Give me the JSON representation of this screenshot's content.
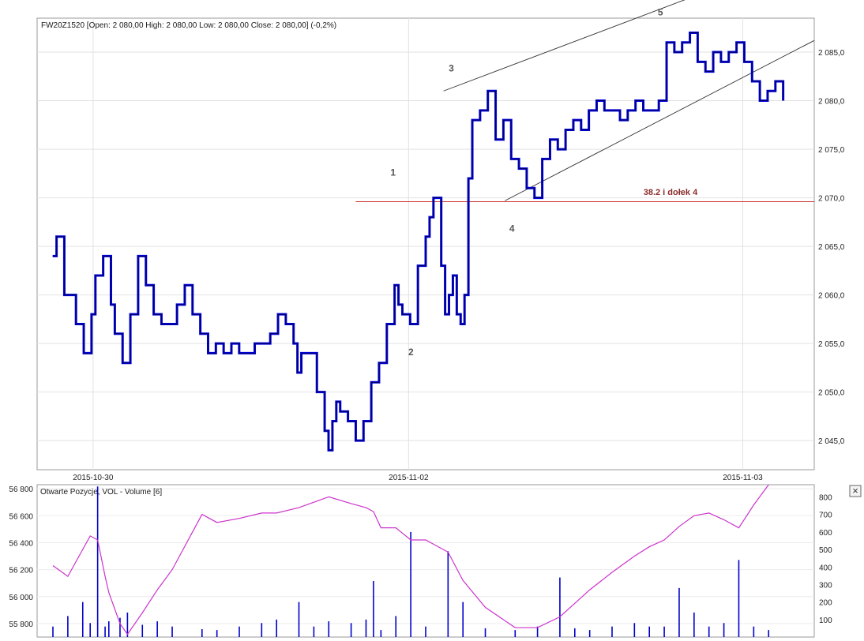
{
  "chart_data": [
    {
      "type": "line",
      "title": "FW20Z1520 [Open: 2 080,00  High: 2 080,00  Low: 2 080,00  Close: 2 080,00] (-0,2%)",
      "x_ticks": [
        "2015-10-30",
        "2015-11-02",
        "2015-11-03"
      ],
      "y_ticks": [
        "2 045,0",
        "2 050,0",
        "2 055,0",
        "2 060,0",
        "2 065,0",
        "2 070,0",
        "2 075,0",
        "2 080,0",
        "2 085,0"
      ],
      "ylim": [
        2042,
        2088.5
      ],
      "xlim": [
        0,
        1
      ],
      "series": [
        {
          "color": "#0000dd",
          "x": [
            0.02,
            0.025,
            0.035,
            0.05,
            0.06,
            0.07,
            0.075,
            0.085,
            0.095,
            0.1,
            0.11,
            0.12,
            0.13,
            0.14,
            0.15,
            0.16,
            0.18,
            0.19,
            0.2,
            0.21,
            0.22,
            0.23,
            0.24,
            0.25,
            0.26,
            0.28,
            0.3,
            0.31,
            0.32,
            0.33,
            0.335,
            0.34,
            0.35,
            0.36,
            0.37,
            0.375,
            0.38,
            0.385,
            0.39,
            0.4,
            0.41,
            0.42,
            0.43,
            0.44,
            0.45,
            0.46,
            0.465,
            0.47,
            0.48,
            0.49,
            0.5,
            0.505,
            0.51,
            0.52,
            0.525,
            0.53,
            0.535,
            0.54,
            0.545,
            0.55,
            0.555,
            0.56,
            0.57,
            0.58,
            0.59,
            0.6,
            0.61,
            0.62,
            0.63,
            0.64,
            0.65,
            0.66,
            0.67,
            0.68,
            0.69,
            0.7,
            0.71,
            0.72,
            0.73,
            0.74,
            0.75,
            0.76,
            0.77,
            0.78,
            0.79,
            0.8,
            0.81,
            0.82,
            0.83,
            0.84,
            0.85,
            0.86,
            0.87,
            0.88,
            0.89,
            0.9,
            0.91,
            0.92,
            0.93,
            0.94,
            0.95,
            0.96
          ],
          "y": [
            2064,
            2066,
            2060,
            2057,
            2054,
            2058,
            2062,
            2064,
            2059,
            2056,
            2053,
            2058,
            2064,
            2061,
            2058,
            2057,
            2059,
            2061,
            2058,
            2056,
            2054,
            2055,
            2054,
            2055,
            2054,
            2055,
            2056,
            2058,
            2057,
            2055,
            2052,
            2054,
            2054,
            2050,
            2046,
            2044,
            2047,
            2049,
            2048,
            2047,
            2045,
            2047,
            2051,
            2053,
            2057,
            2061,
            2059,
            2058,
            2057,
            2063,
            2066,
            2068,
            2070,
            2063,
            2058,
            2060,
            2062,
            2058,
            2057,
            2060,
            2072,
            2078,
            2079,
            2081,
            2076,
            2078,
            2074,
            2073,
            2071,
            2070,
            2074,
            2076,
            2075,
            2077,
            2078,
            2077,
            2079,
            2080,
            2079,
            2079,
            2078,
            2079,
            2080,
            2079,
            2079,
            2080,
            2086,
            2085,
            2086,
            2087,
            2084,
            2083,
            2085,
            2084,
            2085,
            2086,
            2084,
            2082,
            2080,
            2081,
            2082,
            2080
          ]
        }
      ],
      "annotations": [
        {
          "text": "1",
          "x": 0.458,
          "y": 2072.3
        },
        {
          "text": "2",
          "x": 0.481,
          "y": 2053.8
        },
        {
          "text": "3",
          "x": 0.533,
          "y": 2083.0
        },
        {
          "text": "4",
          "x": 0.611,
          "y": 2066.5
        },
        {
          "text": "5",
          "x": 0.802,
          "y": 2088.8
        },
        {
          "text": "38.2 i dołek 4",
          "x": 0.815,
          "y": 2070.3
        }
      ],
      "horizontal_lines": [
        {
          "y": 2069.6,
          "x_start": 0.41,
          "x_end": 1.0,
          "color": "#cc3333"
        }
      ],
      "trend_lines": [
        {
          "x1": 0.523,
          "y1": 2081.0,
          "x2": 0.87,
          "y2": 2091.5,
          "color": "#333333"
        },
        {
          "x1": 0.602,
          "y1": 2069.7,
          "x2": 1.0,
          "y2": 2086.2,
          "color": "#333333"
        }
      ],
      "grid": true,
      "legend": "none"
    },
    {
      "type": "bar",
      "title": "Otwarte Pozycje, VOL - Volume [6]",
      "left_ticks": [
        "55 800",
        "56 000",
        "56 200",
        "56 400",
        "56 600",
        "56 800"
      ],
      "right_ticks": [
        "100",
        "200",
        "300",
        "400",
        "500",
        "600",
        "700",
        "800"
      ],
      "left_lim": [
        55700,
        56830
      ],
      "right_lim": [
        0,
        870
      ],
      "series": [
        {
          "name": "Otwarte Pozycje",
          "color": "#cc33cc",
          "x": [
            0.0,
            0.02,
            0.04,
            0.05,
            0.06,
            0.07,
            0.075,
            0.09,
            0.1,
            0.12,
            0.14,
            0.16,
            0.2,
            0.22,
            0.25,
            0.28,
            0.3,
            0.33,
            0.35,
            0.37,
            0.4,
            0.42,
            0.43,
            0.44,
            0.46,
            0.48,
            0.5,
            0.53,
            0.55,
            0.58,
            0.62,
            0.65,
            0.68,
            0.7,
            0.72,
            0.75,
            0.78,
            0.8,
            0.82,
            0.84,
            0.86,
            0.88,
            0.9,
            0.92,
            0.94,
            0.96
          ],
          "y": [
            56230,
            56150,
            56350,
            56450,
            56420,
            56150,
            56030,
            55800,
            55720,
            55880,
            56050,
            56200,
            56610,
            56550,
            56580,
            56620,
            56620,
            56660,
            56700,
            56740,
            56690,
            56660,
            56630,
            56510,
            56510,
            56420,
            56420,
            56330,
            56120,
            55920,
            55770,
            55770,
            55850,
            55950,
            56050,
            56180,
            56300,
            56370,
            56420,
            56520,
            56600,
            56620,
            56570,
            56510,
            56680,
            56830
          ]
        },
        {
          "name": "VOL - Volume",
          "color": "#0000cc",
          "x": [
            0.0,
            0.02,
            0.04,
            0.05,
            0.06,
            0.07,
            0.075,
            0.09,
            0.1,
            0.12,
            0.14,
            0.16,
            0.2,
            0.22,
            0.25,
            0.28,
            0.3,
            0.33,
            0.35,
            0.37,
            0.4,
            0.42,
            0.43,
            0.44,
            0.46,
            0.48,
            0.5,
            0.53,
            0.55,
            0.58,
            0.62,
            0.65,
            0.68,
            0.7,
            0.72,
            0.75,
            0.78,
            0.8,
            0.82,
            0.84,
            0.86,
            0.88,
            0.9,
            0.92,
            0.94,
            0.96
          ],
          "y": [
            60,
            120,
            200,
            80,
            860,
            60,
            90,
            110,
            140,
            70,
            90,
            60,
            45,
            40,
            60,
            80,
            100,
            200,
            60,
            90,
            80,
            100,
            320,
            40,
            120,
            600,
            60,
            490,
            200,
            50,
            40,
            60,
            340,
            50,
            40,
            60,
            80,
            60,
            60,
            280,
            140,
            60,
            80,
            440,
            60,
            40
          ]
        }
      ],
      "grid": true,
      "legend": "none"
    }
  ],
  "close_button": {
    "label": "×"
  }
}
